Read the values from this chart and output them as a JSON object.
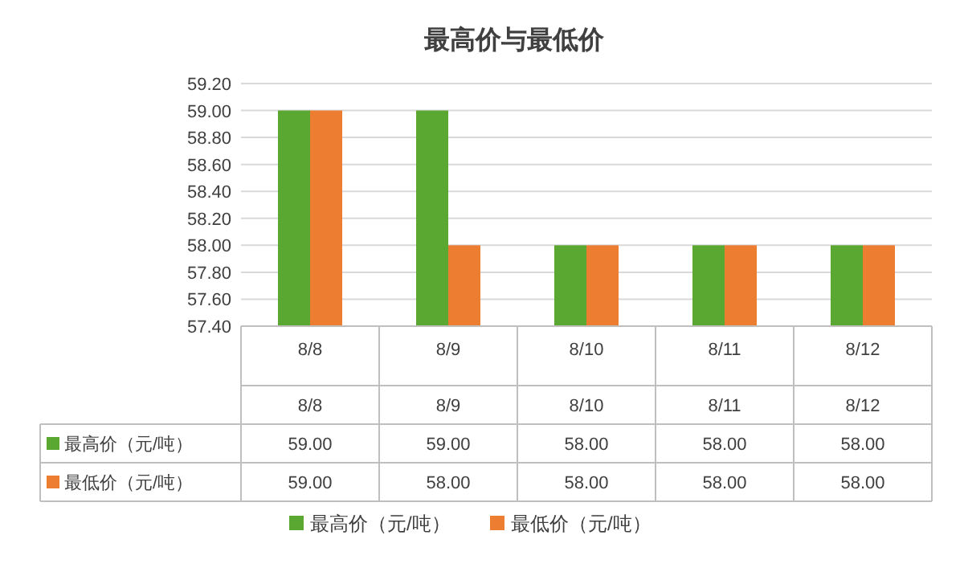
{
  "chart_data": {
    "type": "bar",
    "title": "最高价与最低价",
    "categories": [
      "8/8",
      "8/9",
      "8/10",
      "8/11",
      "8/12"
    ],
    "series": [
      {
        "name": "最高价（元/吨）",
        "color": "#5aa832",
        "values": [
          59.0,
          59.0,
          58.0,
          58.0,
          58.0
        ],
        "value_labels": [
          "59.00",
          "59.00",
          "58.00",
          "58.00",
          "58.00"
        ]
      },
      {
        "name": "最低价（元/吨）",
        "color": "#ed7d31",
        "values": [
          59.0,
          58.0,
          58.0,
          58.0,
          58.0
        ],
        "value_labels": [
          "59.00",
          "58.00",
          "58.00",
          "58.00",
          "58.00"
        ]
      }
    ],
    "ylim": [
      57.4,
      59.2
    ],
    "yticks": [
      {
        "value": 57.4,
        "label": "57.40"
      },
      {
        "value": 57.6,
        "label": "57.60"
      },
      {
        "value": 57.8,
        "label": "57.80"
      },
      {
        "value": 58.0,
        "label": "58.00"
      },
      {
        "value": 58.2,
        "label": "58.20"
      },
      {
        "value": 58.4,
        "label": "58.40"
      },
      {
        "value": 58.6,
        "label": "58.60"
      },
      {
        "value": 58.8,
        "label": "58.80"
      },
      {
        "value": 59.0,
        "label": "59.00"
      },
      {
        "value": 59.2,
        "label": "59.20"
      }
    ],
    "grid": "y",
    "legend": "bottom"
  }
}
